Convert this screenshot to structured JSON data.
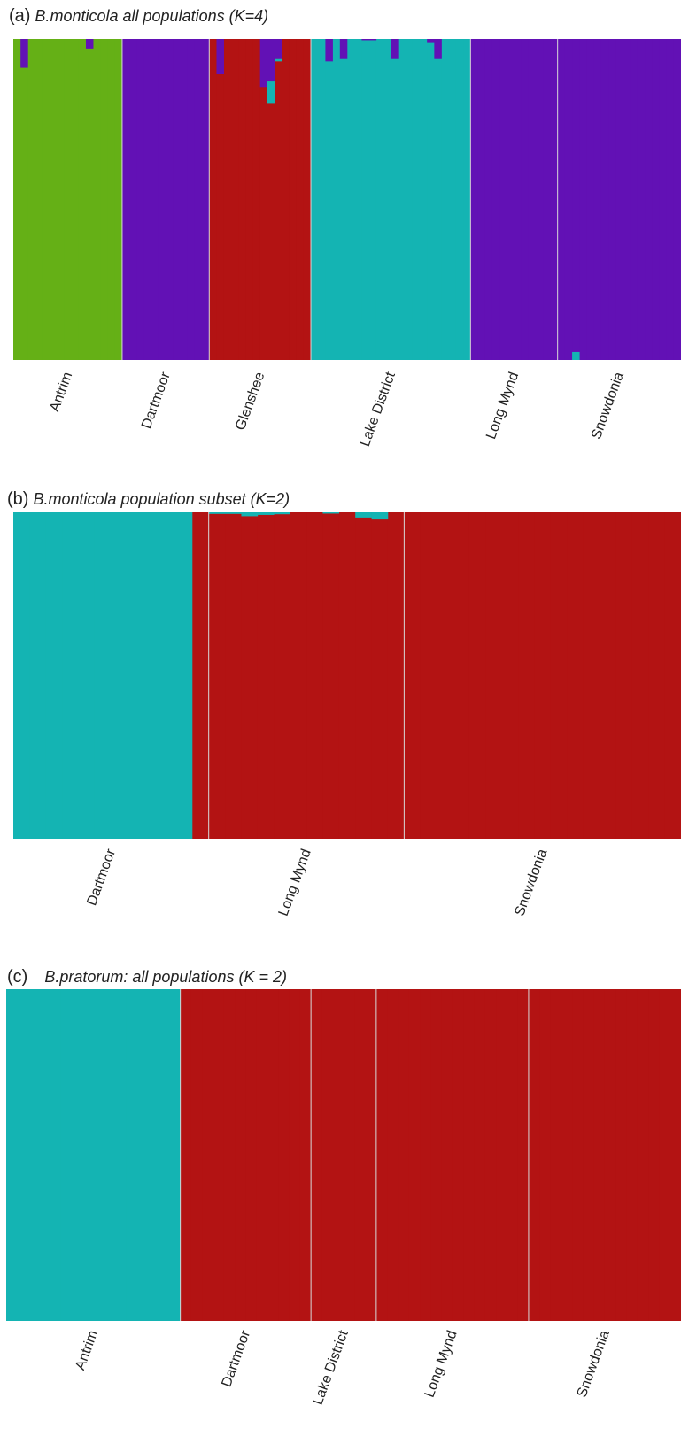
{
  "colors": {
    "green": "#65b016",
    "purple": "#6211b5",
    "red": "#b31313",
    "cyan": "#14b4b3",
    "separator": "#d8d8d8"
  },
  "chart_data": [
    {
      "type": "bar",
      "subtype": "stacked-admixture",
      "panel_letter": "(a)",
      "title": "B.monticola all populations (K=4)",
      "ylim": [
        0,
        1
      ],
      "categories": [
        "Antrim",
        "Dartmoor",
        "Glenshee",
        "Lake District",
        "Long Mynd",
        "Snowdonia"
      ],
      "populations": [
        {
          "name": "Antrim",
          "n": 15,
          "dominant": "green",
          "admixture": [
            {
              "index": 1,
              "color": "purple",
              "value": 0.09
            },
            {
              "index": 10,
              "color": "purple",
              "value": 0.03
            }
          ]
        },
        {
          "name": "Dartmoor",
          "n": 12,
          "dominant": "purple",
          "admixture": []
        },
        {
          "name": "Glenshee",
          "n": 14,
          "dominant": "red",
          "admixture": [
            {
              "index": 1,
              "color": "purple",
              "value": 0.11
            },
            {
              "index": 7,
              "color": "purple",
              "value": 0.15
            },
            {
              "index": 8,
              "color": "purple",
              "value": 0.13
            },
            {
              "index": 8,
              "color": "cyan",
              "value": 0.07,
              "stack": "after"
            },
            {
              "index": 9,
              "color": "purple",
              "value": 0.06
            },
            {
              "index": 9,
              "color": "cyan",
              "value": 0.01,
              "stack": "after"
            }
          ]
        },
        {
          "name": "Lake District",
          "n": 22,
          "dominant": "cyan",
          "admixture": [
            {
              "index": 2,
              "color": "purple",
              "value": 0.07
            },
            {
              "index": 4,
              "color": "purple",
              "value": 0.06
            },
            {
              "index": 7,
              "color": "purple",
              "value": 0.004
            },
            {
              "index": 8,
              "color": "purple",
              "value": 0.004
            },
            {
              "index": 11,
              "color": "purple",
              "value": 0.06
            },
            {
              "index": 16,
              "color": "purple",
              "value": 0.01
            },
            {
              "index": 17,
              "color": "purple",
              "value": 0.06
            }
          ]
        },
        {
          "name": "Long Mynd",
          "n": 12,
          "dominant": "purple",
          "admixture": []
        },
        {
          "name": "Snowdonia",
          "n": 17,
          "dominant": "purple",
          "admixture": [
            {
              "index": 2,
              "color": "cyan",
              "value": 0.025,
              "from": "bottom"
            }
          ]
        }
      ]
    },
    {
      "type": "bar",
      "subtype": "stacked-admixture",
      "panel_letter": "(b)",
      "title": "B.monticola population subset (K=2)",
      "ylim": [
        0,
        1
      ],
      "categories": [
        "Dartmoor",
        "Long Mynd",
        "Snowdonia"
      ],
      "populations": [
        {
          "name": "Dartmoor",
          "n": 12,
          "dominant": "cyan",
          "admixture": [
            {
              "index": 11,
              "color": "red",
              "value": 1.0
            }
          ]
        },
        {
          "name": "Long Mynd",
          "n": 12,
          "dominant": "red",
          "admixture": [
            {
              "index": 0,
              "color": "cyan",
              "value": 0.005
            },
            {
              "index": 1,
              "color": "cyan",
              "value": 0.005
            },
            {
              "index": 2,
              "color": "cyan",
              "value": 0.012
            },
            {
              "index": 3,
              "color": "cyan",
              "value": 0.008
            },
            {
              "index": 4,
              "color": "cyan",
              "value": 0.006
            },
            {
              "index": 7,
              "color": "cyan",
              "value": 0.004
            },
            {
              "index": 9,
              "color": "cyan",
              "value": 0.016
            },
            {
              "index": 10,
              "color": "cyan",
              "value": 0.022
            }
          ]
        },
        {
          "name": "Snowdonia",
          "n": 17,
          "dominant": "red",
          "admixture": []
        }
      ]
    },
    {
      "type": "bar",
      "subtype": "stacked-admixture",
      "panel_letter": "(c)",
      "title": "B.pratorum: all populations (K = 2)",
      "ylim": [
        0,
        1
      ],
      "categories": [
        "Antrim",
        "Dartmoor",
        "Lake District",
        "Long Mynd",
        "Snowdonia"
      ],
      "populations": [
        {
          "name": "Antrim",
          "n": 16,
          "dominant": "cyan",
          "admixture": []
        },
        {
          "name": "Dartmoor",
          "n": 12,
          "dominant": "red",
          "admixture": []
        },
        {
          "name": "Lake District",
          "n": 6,
          "dominant": "red",
          "admixture": []
        },
        {
          "name": "Long Mynd",
          "n": 14,
          "dominant": "red",
          "admixture": []
        },
        {
          "name": "Snowdonia",
          "n": 14,
          "dominant": "red",
          "admixture": []
        }
      ]
    }
  ]
}
